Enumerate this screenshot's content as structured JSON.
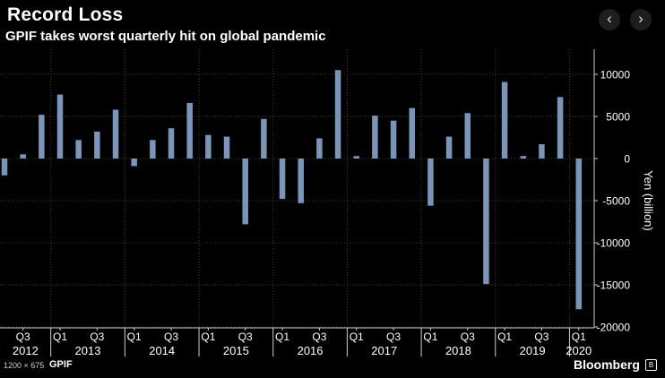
{
  "header": {
    "title": "Record Loss",
    "subtitle": "GPIF takes worst quarterly hit on global pandemic"
  },
  "nav": {
    "prev_label": "‹",
    "next_label": "›"
  },
  "footer": {
    "size_label": "1200 × 675",
    "source": "GPIF",
    "brand": "Bloomberg",
    "brand_icon": "B"
  },
  "colors": {
    "bar": "#7a95b8",
    "gridline": "#3c3c3c",
    "axis": "#cfcfcf",
    "text": "#ffffff"
  },
  "chart_data": {
    "type": "bar",
    "title": "Record Loss",
    "subtitle": "GPIF takes worst quarterly hit on global pandemic",
    "ylabel": "Yen (billion)",
    "ylim": [
      -20000,
      12000
    ],
    "yticks": [
      10000,
      5000,
      0,
      -5000,
      -10000,
      -15000,
      -20000
    ],
    "ytick_labels": [
      "10000",
      "5000",
      "0",
      "-5000",
      "-10000",
      "-15000",
      "-20000"
    ],
    "grid": true,
    "y_axis_position": "right",
    "categories": [
      "2012 Q2",
      "2012 Q3",
      "2012 Q4",
      "2013 Q1",
      "2013 Q2",
      "2013 Q3",
      "2013 Q4",
      "2014 Q1",
      "2014 Q2",
      "2014 Q3",
      "2014 Q4",
      "2015 Q1",
      "2015 Q2",
      "2015 Q3",
      "2015 Q4",
      "2016 Q1",
      "2016 Q2",
      "2016 Q3",
      "2016 Q4",
      "2017 Q1",
      "2017 Q2",
      "2017 Q3",
      "2017 Q4",
      "2018 Q1",
      "2018 Q2",
      "2018 Q3",
      "2018 Q4",
      "2019 Q1",
      "2019 Q2",
      "2019 Q3",
      "2019 Q4",
      "2020 Q1"
    ],
    "values": [
      -2000,
      500,
      5200,
      7600,
      2200,
      3200,
      5800,
      -900,
      2200,
      3600,
      6600,
      2800,
      2600,
      -7800,
      4700,
      -4800,
      -5300,
      2400,
      10500,
      300,
      5100,
      4500,
      6000,
      -5600,
      2600,
      5400,
      -14900,
      9100,
      300,
      1700,
      7300,
      -17900
    ],
    "quarter_ticks": [
      {
        "label": "Q3",
        "index": 1
      },
      {
        "label": "Q1",
        "index": 3
      },
      {
        "label": "Q3",
        "index": 5
      },
      {
        "label": "Q1",
        "index": 7
      },
      {
        "label": "Q3",
        "index": 9
      },
      {
        "label": "Q1",
        "index": 11
      },
      {
        "label": "Q3",
        "index": 13
      },
      {
        "label": "Q1",
        "index": 15
      },
      {
        "label": "Q3",
        "index": 17
      },
      {
        "label": "Q1",
        "index": 19
      },
      {
        "label": "Q3",
        "index": 21
      },
      {
        "label": "Q1",
        "index": 23
      },
      {
        "label": "Q3",
        "index": 25
      },
      {
        "label": "Q1",
        "index": 27
      },
      {
        "label": "Q3",
        "index": 29
      },
      {
        "label": "Q1",
        "index": 31
      }
    ],
    "year_labels": [
      {
        "label": "2012",
        "first": 0,
        "last": 2
      },
      {
        "label": "2013",
        "first": 3,
        "last": 6
      },
      {
        "label": "2014",
        "first": 7,
        "last": 10
      },
      {
        "label": "2015",
        "first": 11,
        "last": 14
      },
      {
        "label": "2016",
        "first": 15,
        "last": 18
      },
      {
        "label": "2017",
        "first": 19,
        "last": 22
      },
      {
        "label": "2018",
        "first": 23,
        "last": 26
      },
      {
        "label": "2019",
        "first": 27,
        "last": 30
      },
      {
        "label": "2020",
        "first": 31,
        "last": 31
      }
    ]
  }
}
